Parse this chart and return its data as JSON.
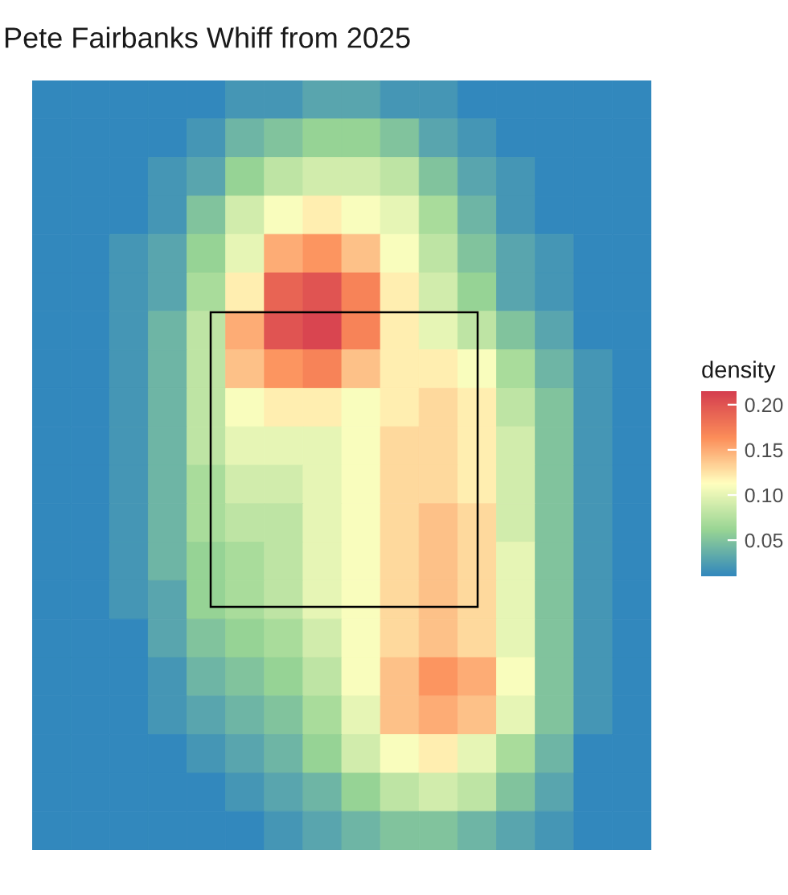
{
  "chart_data": {
    "type": "heatmap",
    "title": "Pete Fairbanks Whiff from 2025",
    "clabel": "density",
    "categories": [
      null,
      null,
      null,
      null,
      null,
      null,
      null,
      null,
      null,
      null,
      null,
      null,
      null,
      null,
      null,
      null
    ],
    "y_categories": [
      null,
      null,
      null,
      null,
      null,
      null,
      null,
      null,
      null,
      null,
      null,
      null,
      null,
      null,
      null,
      null,
      null,
      null,
      null,
      null
    ],
    "clim": [
      0.01,
      0.215
    ],
    "cticks": [
      {
        "value": 0.05,
        "label": "0.05"
      },
      {
        "value": 0.1,
        "label": "0.10"
      },
      {
        "value": 0.15,
        "label": "0.15"
      },
      {
        "value": 0.2,
        "label": "0.20"
      }
    ],
    "cells": [
      [
        0.01,
        0.01,
        0.01,
        0.01,
        0.01,
        0.02,
        0.02,
        0.03,
        0.03,
        0.02,
        0.02,
        0.01,
        0.01,
        0.01,
        0.01,
        0.01
      ],
      [
        0.01,
        0.01,
        0.01,
        0.01,
        0.02,
        0.04,
        0.05,
        0.06,
        0.06,
        0.05,
        0.03,
        0.02,
        0.01,
        0.01,
        0.01,
        0.01
      ],
      [
        0.01,
        0.01,
        0.01,
        0.02,
        0.03,
        0.06,
        0.08,
        0.09,
        0.09,
        0.08,
        0.05,
        0.03,
        0.02,
        0.01,
        0.01,
        0.01
      ],
      [
        0.01,
        0.01,
        0.01,
        0.02,
        0.05,
        0.09,
        0.11,
        0.12,
        0.11,
        0.1,
        0.07,
        0.04,
        0.02,
        0.01,
        0.01,
        0.01
      ],
      [
        0.01,
        0.01,
        0.02,
        0.03,
        0.06,
        0.1,
        0.15,
        0.16,
        0.14,
        0.11,
        0.08,
        0.05,
        0.03,
        0.02,
        0.01,
        0.01
      ],
      [
        0.01,
        0.01,
        0.02,
        0.03,
        0.07,
        0.12,
        0.19,
        0.2,
        0.17,
        0.12,
        0.09,
        0.06,
        0.03,
        0.02,
        0.01,
        0.01
      ],
      [
        0.01,
        0.01,
        0.02,
        0.04,
        0.08,
        0.15,
        0.2,
        0.21,
        0.17,
        0.12,
        0.1,
        0.08,
        0.05,
        0.03,
        0.01,
        0.01
      ],
      [
        0.01,
        0.01,
        0.02,
        0.04,
        0.08,
        0.14,
        0.16,
        0.17,
        0.14,
        0.12,
        0.12,
        0.11,
        0.07,
        0.04,
        0.02,
        0.01
      ],
      [
        0.01,
        0.01,
        0.02,
        0.04,
        0.08,
        0.11,
        0.12,
        0.12,
        0.11,
        0.12,
        0.13,
        0.12,
        0.08,
        0.05,
        0.02,
        0.01
      ],
      [
        0.01,
        0.01,
        0.02,
        0.04,
        0.08,
        0.1,
        0.1,
        0.1,
        0.11,
        0.13,
        0.13,
        0.12,
        0.09,
        0.05,
        0.02,
        0.01
      ],
      [
        0.01,
        0.01,
        0.02,
        0.04,
        0.07,
        0.09,
        0.09,
        0.1,
        0.11,
        0.13,
        0.13,
        0.12,
        0.09,
        0.05,
        0.02,
        0.01
      ],
      [
        0.01,
        0.01,
        0.02,
        0.04,
        0.07,
        0.08,
        0.08,
        0.1,
        0.11,
        0.13,
        0.14,
        0.13,
        0.09,
        0.05,
        0.02,
        0.01
      ],
      [
        0.01,
        0.01,
        0.02,
        0.04,
        0.06,
        0.07,
        0.08,
        0.1,
        0.11,
        0.13,
        0.14,
        0.13,
        0.1,
        0.05,
        0.02,
        0.01
      ],
      [
        0.01,
        0.01,
        0.02,
        0.03,
        0.06,
        0.07,
        0.08,
        0.1,
        0.11,
        0.13,
        0.14,
        0.13,
        0.1,
        0.05,
        0.02,
        0.01
      ],
      [
        0.01,
        0.01,
        0.01,
        0.03,
        0.05,
        0.06,
        0.07,
        0.09,
        0.11,
        0.13,
        0.14,
        0.13,
        0.1,
        0.05,
        0.02,
        0.01
      ],
      [
        0.01,
        0.01,
        0.01,
        0.02,
        0.04,
        0.05,
        0.06,
        0.08,
        0.11,
        0.14,
        0.16,
        0.15,
        0.11,
        0.05,
        0.02,
        0.01
      ],
      [
        0.01,
        0.01,
        0.01,
        0.02,
        0.03,
        0.04,
        0.05,
        0.07,
        0.1,
        0.14,
        0.15,
        0.14,
        0.1,
        0.05,
        0.02,
        0.01
      ],
      [
        0.01,
        0.01,
        0.01,
        0.01,
        0.02,
        0.03,
        0.04,
        0.06,
        0.09,
        0.11,
        0.12,
        0.1,
        0.07,
        0.04,
        0.01,
        0.01
      ],
      [
        0.01,
        0.01,
        0.01,
        0.01,
        0.01,
        0.02,
        0.03,
        0.04,
        0.06,
        0.08,
        0.09,
        0.08,
        0.05,
        0.03,
        0.01,
        0.01
      ],
      [
        0.01,
        0.01,
        0.01,
        0.01,
        0.01,
        0.01,
        0.02,
        0.03,
        0.04,
        0.05,
        0.05,
        0.04,
        0.03,
        0.02,
        0.01,
        0.01
      ]
    ]
  }
}
